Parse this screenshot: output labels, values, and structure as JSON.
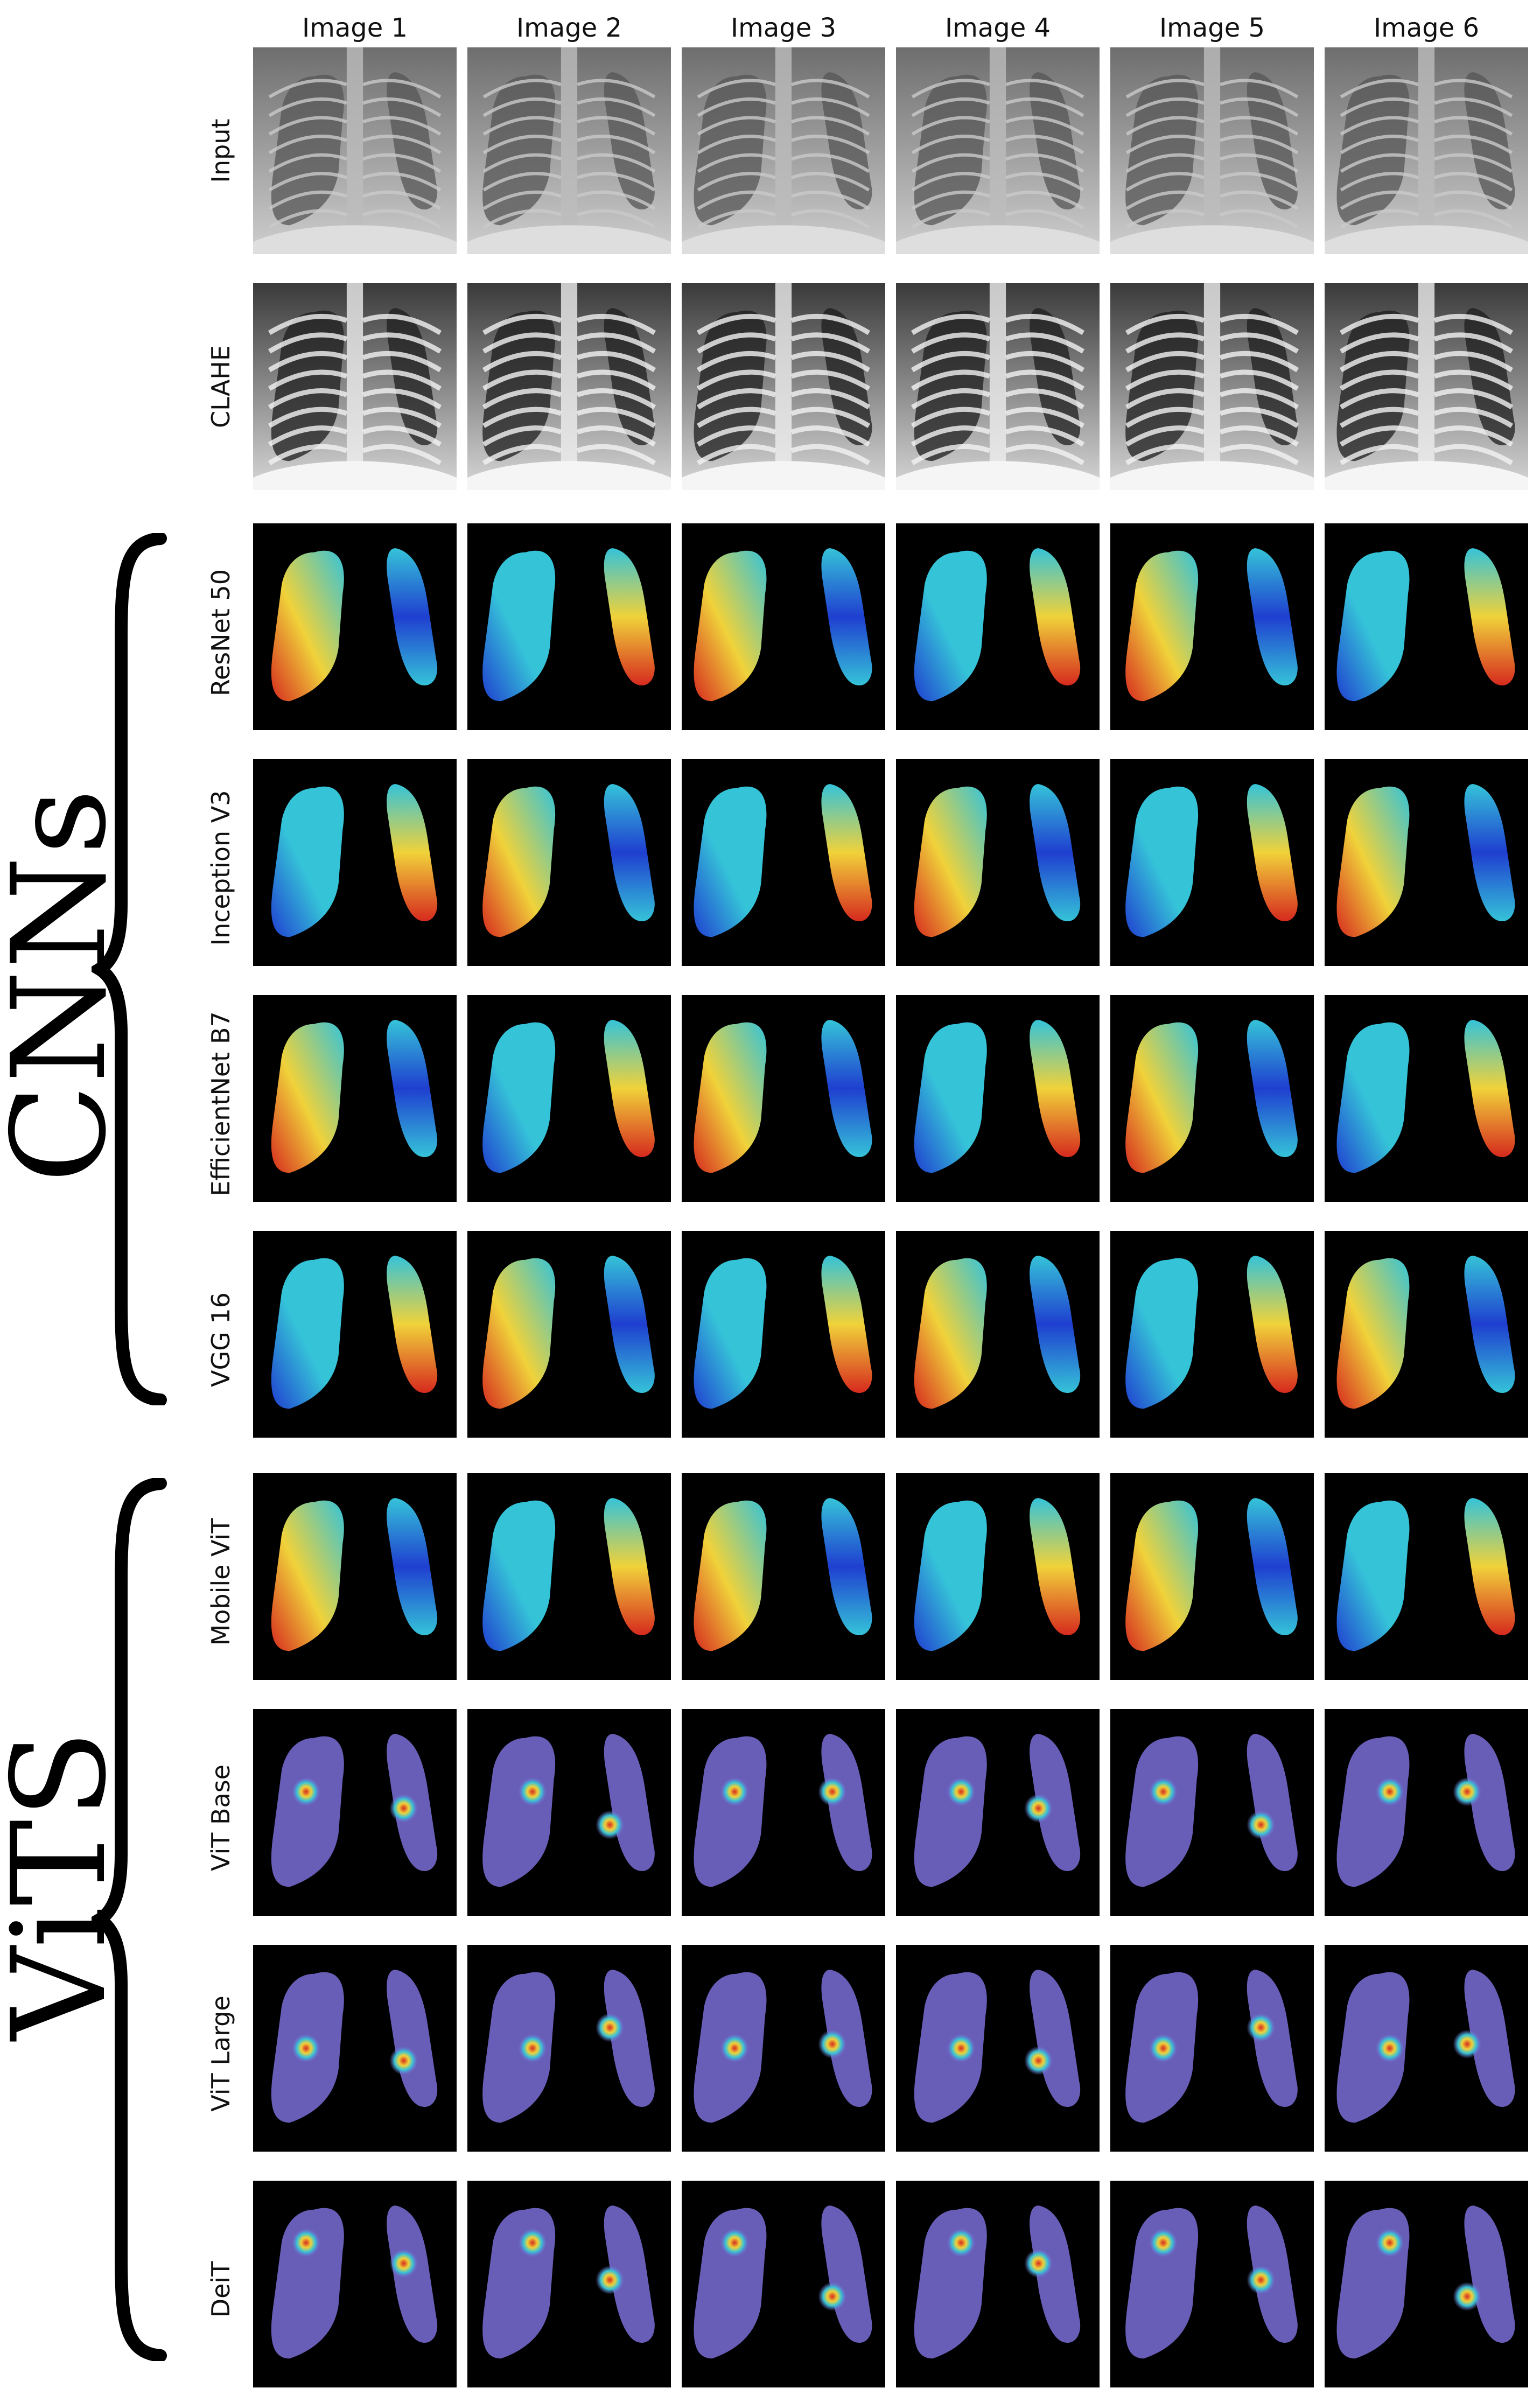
{
  "columns": [
    "Image 1",
    "Image 2",
    "Image 3",
    "Image 4",
    "Image 5",
    "Image 6"
  ],
  "rows": [
    {
      "label": "Input",
      "kind": "xray"
    },
    {
      "label": "CLAHE",
      "kind": "clahe"
    },
    {
      "label": "ResNet 50",
      "kind": "cnn"
    },
    {
      "label": "Inception V3",
      "kind": "cnn"
    },
    {
      "label": "EfficientNet B7",
      "kind": "cnn"
    },
    {
      "label": "VGG 16",
      "kind": "cnn"
    },
    {
      "label": "Mobile ViT",
      "kind": "cnn"
    },
    {
      "label": "ViT Base",
      "kind": "vit"
    },
    {
      "label": "ViT Large",
      "kind": "vit"
    },
    {
      "label": "DeiT",
      "kind": "vit"
    }
  ],
  "groups": [
    {
      "label": "CNNs"
    },
    {
      "label": "ViTS"
    }
  ],
  "colors": {
    "background": "#ffffff",
    "heatmap_background": "#000000",
    "vit_overlay": "#7a6fd8",
    "hot": "#d62a1e",
    "warm": "#f0d23a",
    "cool": "#35c3d8",
    "cold": "#1f3fd0"
  }
}
